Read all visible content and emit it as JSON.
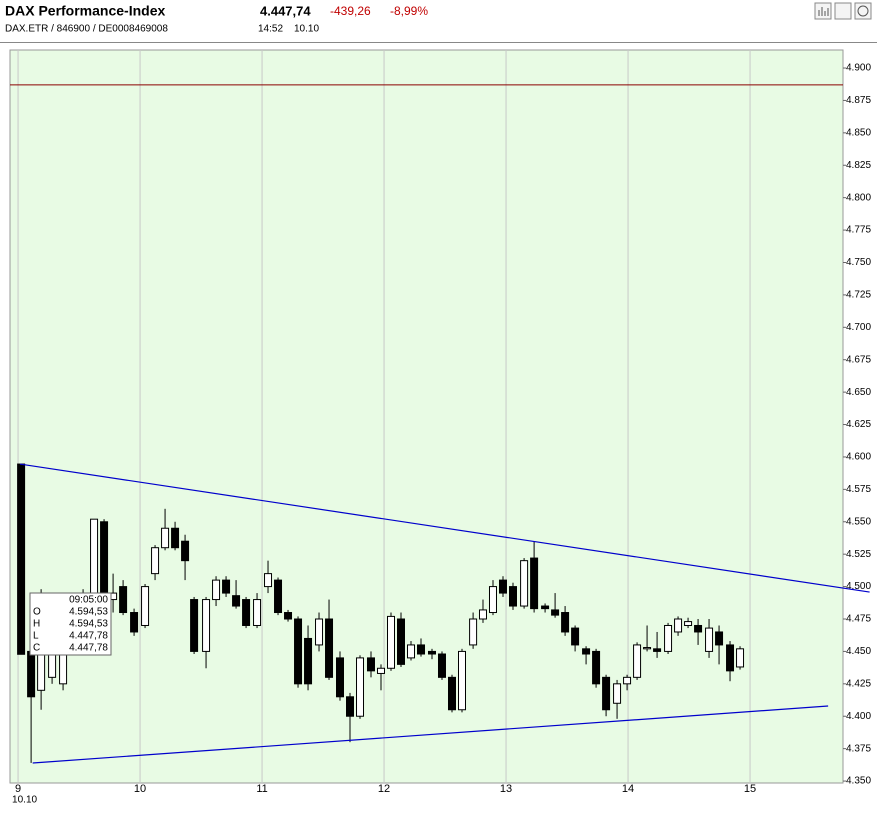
{
  "chart_data": {
    "type": "candlestick",
    "title": "DAX Performance-Index",
    "subtitle": "DAX.ETR  /  846900  /  DE0008469008",
    "last": "4.447,74",
    "change": "-439,26",
    "change_pct": "-8,99%",
    "time": "14:52",
    "date": "10.10",
    "x": [
      9.025,
      9.107,
      9.189,
      9.279,
      9.369,
      9.451,
      9.533,
      9.623,
      9.705,
      9.779,
      9.861,
      9.951,
      10.041,
      10.123,
      10.205,
      10.287,
      10.369,
      10.443,
      10.541,
      10.623,
      10.705,
      10.787,
      10.869,
      10.959,
      11.049,
      11.131,
      11.213,
      11.295,
      11.377,
      11.467,
      11.549,
      11.639,
      11.721,
      11.803,
      11.893,
      11.975,
      12.057,
      12.139,
      12.221,
      12.303,
      12.393,
      12.475,
      12.557,
      12.639,
      12.73,
      12.811,
      12.893,
      12.975,
      13.057,
      13.148,
      13.23,
      13.32,
      13.402,
      13.484,
      13.566,
      13.656,
      13.738,
      13.82,
      13.91,
      13.992,
      14.074,
      14.156,
      14.238,
      14.328,
      14.41,
      14.492,
      14.574,
      14.664,
      14.746,
      14.836,
      14.918
    ],
    "open": [
      4594.53,
      4450,
      4420,
      4430,
      4425,
      4470,
      4475,
      4480,
      4550,
      4490,
      4500,
      4480,
      4470,
      4510,
      4530,
      4545,
      4535,
      4490,
      4450,
      4490,
      4505,
      4493,
      4490,
      4470,
      4500,
      4505,
      4480,
      4475,
      4460,
      4455,
      4475,
      4445,
      4415,
      4400,
      4445,
      4433,
      4437,
      4475,
      4445,
      4455,
      4450,
      4448,
      4430,
      4405,
      4455,
      4475,
      4480,
      4505,
      4500,
      4485,
      4522,
      4485,
      4482,
      4480,
      4468,
      4452,
      4450,
      4430,
      4410,
      4425,
      4430,
      4452,
      4452,
      4450,
      4465,
      4470,
      4470,
      4450,
      4465,
      4455,
      4438
    ],
    "high": [
      4594.53,
      4452,
      4498,
      4495,
      4482,
      4495,
      4498,
      4552,
      4552,
      4510,
      4505,
      4483,
      4502,
      4532,
      4560,
      4550,
      4540,
      4492,
      4492,
      4508,
      4508,
      4505,
      4492,
      4495,
      4520,
      4507,
      4482,
      4477,
      4470,
      4480,
      4490,
      4450,
      4418,
      4447,
      4450,
      4440,
      4480,
      4480,
      4458,
      4460,
      4452,
      4450,
      4432,
      4452,
      4480,
      4490,
      4505,
      4508,
      4503,
      4522,
      4535,
      4487,
      4495,
      4485,
      4470,
      4454,
      4452,
      4432,
      4428,
      4432,
      4457,
      4470,
      4465,
      4472,
      4477,
      4476,
      4475,
      4475,
      4470,
      4458,
      4454
    ],
    "low": [
      4447.78,
      4364,
      4405,
      4425,
      4420,
      4465,
      4470,
      4478,
      4480,
      4480,
      4478,
      4462,
      4468,
      4505,
      4528,
      4528,
      4505,
      4448,
      4437,
      4485,
      4492,
      4483,
      4468,
      4468,
      4495,
      4478,
      4473,
      4422,
      4420,
      4450,
      4428,
      4412,
      4380,
      4398,
      4430,
      4420,
      4435,
      4438,
      4443,
      4446,
      4444,
      4428,
      4403,
      4403,
      4452,
      4472,
      4478,
      4492,
      4482,
      4483,
      4480,
      4480,
      4476,
      4462,
      4450,
      4440,
      4422,
      4400,
      4398,
      4420,
      4428,
      4450,
      4445,
      4448,
      4462,
      4468,
      4455,
      4445,
      4440,
      4427,
      4436
    ],
    "close": [
      4447.78,
      4415,
      4495,
      4490,
      4480,
      4490,
      4495,
      4552,
      4490,
      4495,
      4480,
      4465,
      4500,
      4530,
      4545,
      4530,
      4520,
      4450,
      4490,
      4505,
      4495,
      4485,
      4470,
      4490,
      4510,
      4480,
      4475,
      4425,
      4425,
      4475,
      4430,
      4415,
      4400,
      4445,
      4435,
      4437,
      4477,
      4440,
      4455,
      4448,
      4448,
      4430,
      4405,
      4450,
      4475,
      4482,
      4500,
      4495,
      4485,
      4520,
      4483,
      4483,
      4478,
      4465,
      4455,
      4448,
      4425,
      4405,
      4425,
      4430,
      4455,
      4453,
      4450,
      4470,
      4475,
      4473,
      4465,
      4468,
      4455,
      4435,
      4452
    ],
    "up_color": "#ffffff",
    "down_color": "#000000",
    "xlim": [
      8.934,
      15.762
    ],
    "xticks": [
      9,
      10,
      11,
      12,
      13,
      14,
      15
    ],
    "x_sublabel": "10.10",
    "ylim": [
      4348.5,
      4913.9
    ],
    "yticks": [
      {
        "value": 4350,
        "label": "4.350"
      },
      {
        "value": 4375,
        "label": "4.375"
      },
      {
        "value": 4400,
        "label": "4.400"
      },
      {
        "value": 4425,
        "label": "4.425"
      },
      {
        "value": 4450,
        "label": "4.450"
      },
      {
        "value": 4475,
        "label": "4.475"
      },
      {
        "value": 4500,
        "label": "4.500"
      },
      {
        "value": 4525,
        "label": "4.525"
      },
      {
        "value": 4550,
        "label": "4.550"
      },
      {
        "value": 4575,
        "label": "4.575"
      },
      {
        "value": 4600,
        "label": "4.600"
      },
      {
        "value": 4625,
        "label": "4.625"
      },
      {
        "value": 4650,
        "label": "4.650"
      },
      {
        "value": 4675,
        "label": "4.675"
      },
      {
        "value": 4700,
        "label": "4.700"
      },
      {
        "value": 4725,
        "label": "4.725"
      },
      {
        "value": 4750,
        "label": "4.750"
      },
      {
        "value": 4775,
        "label": "4.775"
      },
      {
        "value": 4800,
        "label": "4.800"
      },
      {
        "value": 4825,
        "label": "4.825"
      },
      {
        "value": 4850,
        "label": "4.850"
      },
      {
        "value": 4875,
        "label": "4.875"
      },
      {
        "value": 4900,
        "label": "4.900"
      }
    ],
    "grid": true,
    "reference_line": {
      "value": 4887,
      "color": "#8b0000"
    },
    "trend_lines": [
      {
        "x": [
          9.016,
          15.98
        ],
        "y": [
          4594.5,
          4495.8
        ],
        "color": "#0000cc"
      },
      {
        "x": [
          9.12,
          15.64
        ],
        "y": [
          4363.9,
          4407.9
        ],
        "color": "#0000cc"
      }
    ],
    "tooltip": {
      "time": "09:05:00",
      "rows": [
        [
          "O",
          "4.594,53"
        ],
        [
          "H",
          "4.594,53"
        ],
        [
          "L",
          "4.447,78"
        ],
        [
          "C",
          "4.447,78"
        ]
      ]
    }
  }
}
